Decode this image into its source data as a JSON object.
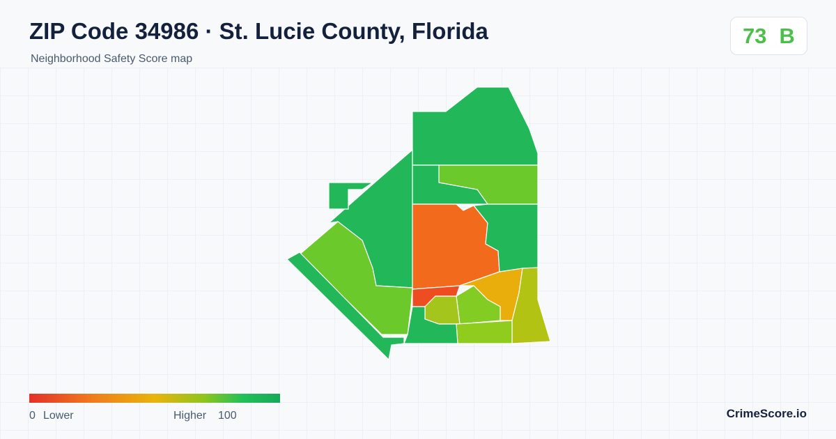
{
  "header": {
    "title": "ZIP Code 34986 · St. Lucie County, Florida",
    "subtitle": "Neighborhood Safety Score map",
    "score": 73,
    "grade": "B"
  },
  "legend": {
    "min": 0,
    "low_label": "Lower",
    "high_label": "Higher",
    "max": 100
  },
  "footer": {
    "brand": "CrimeScore.io"
  }
}
